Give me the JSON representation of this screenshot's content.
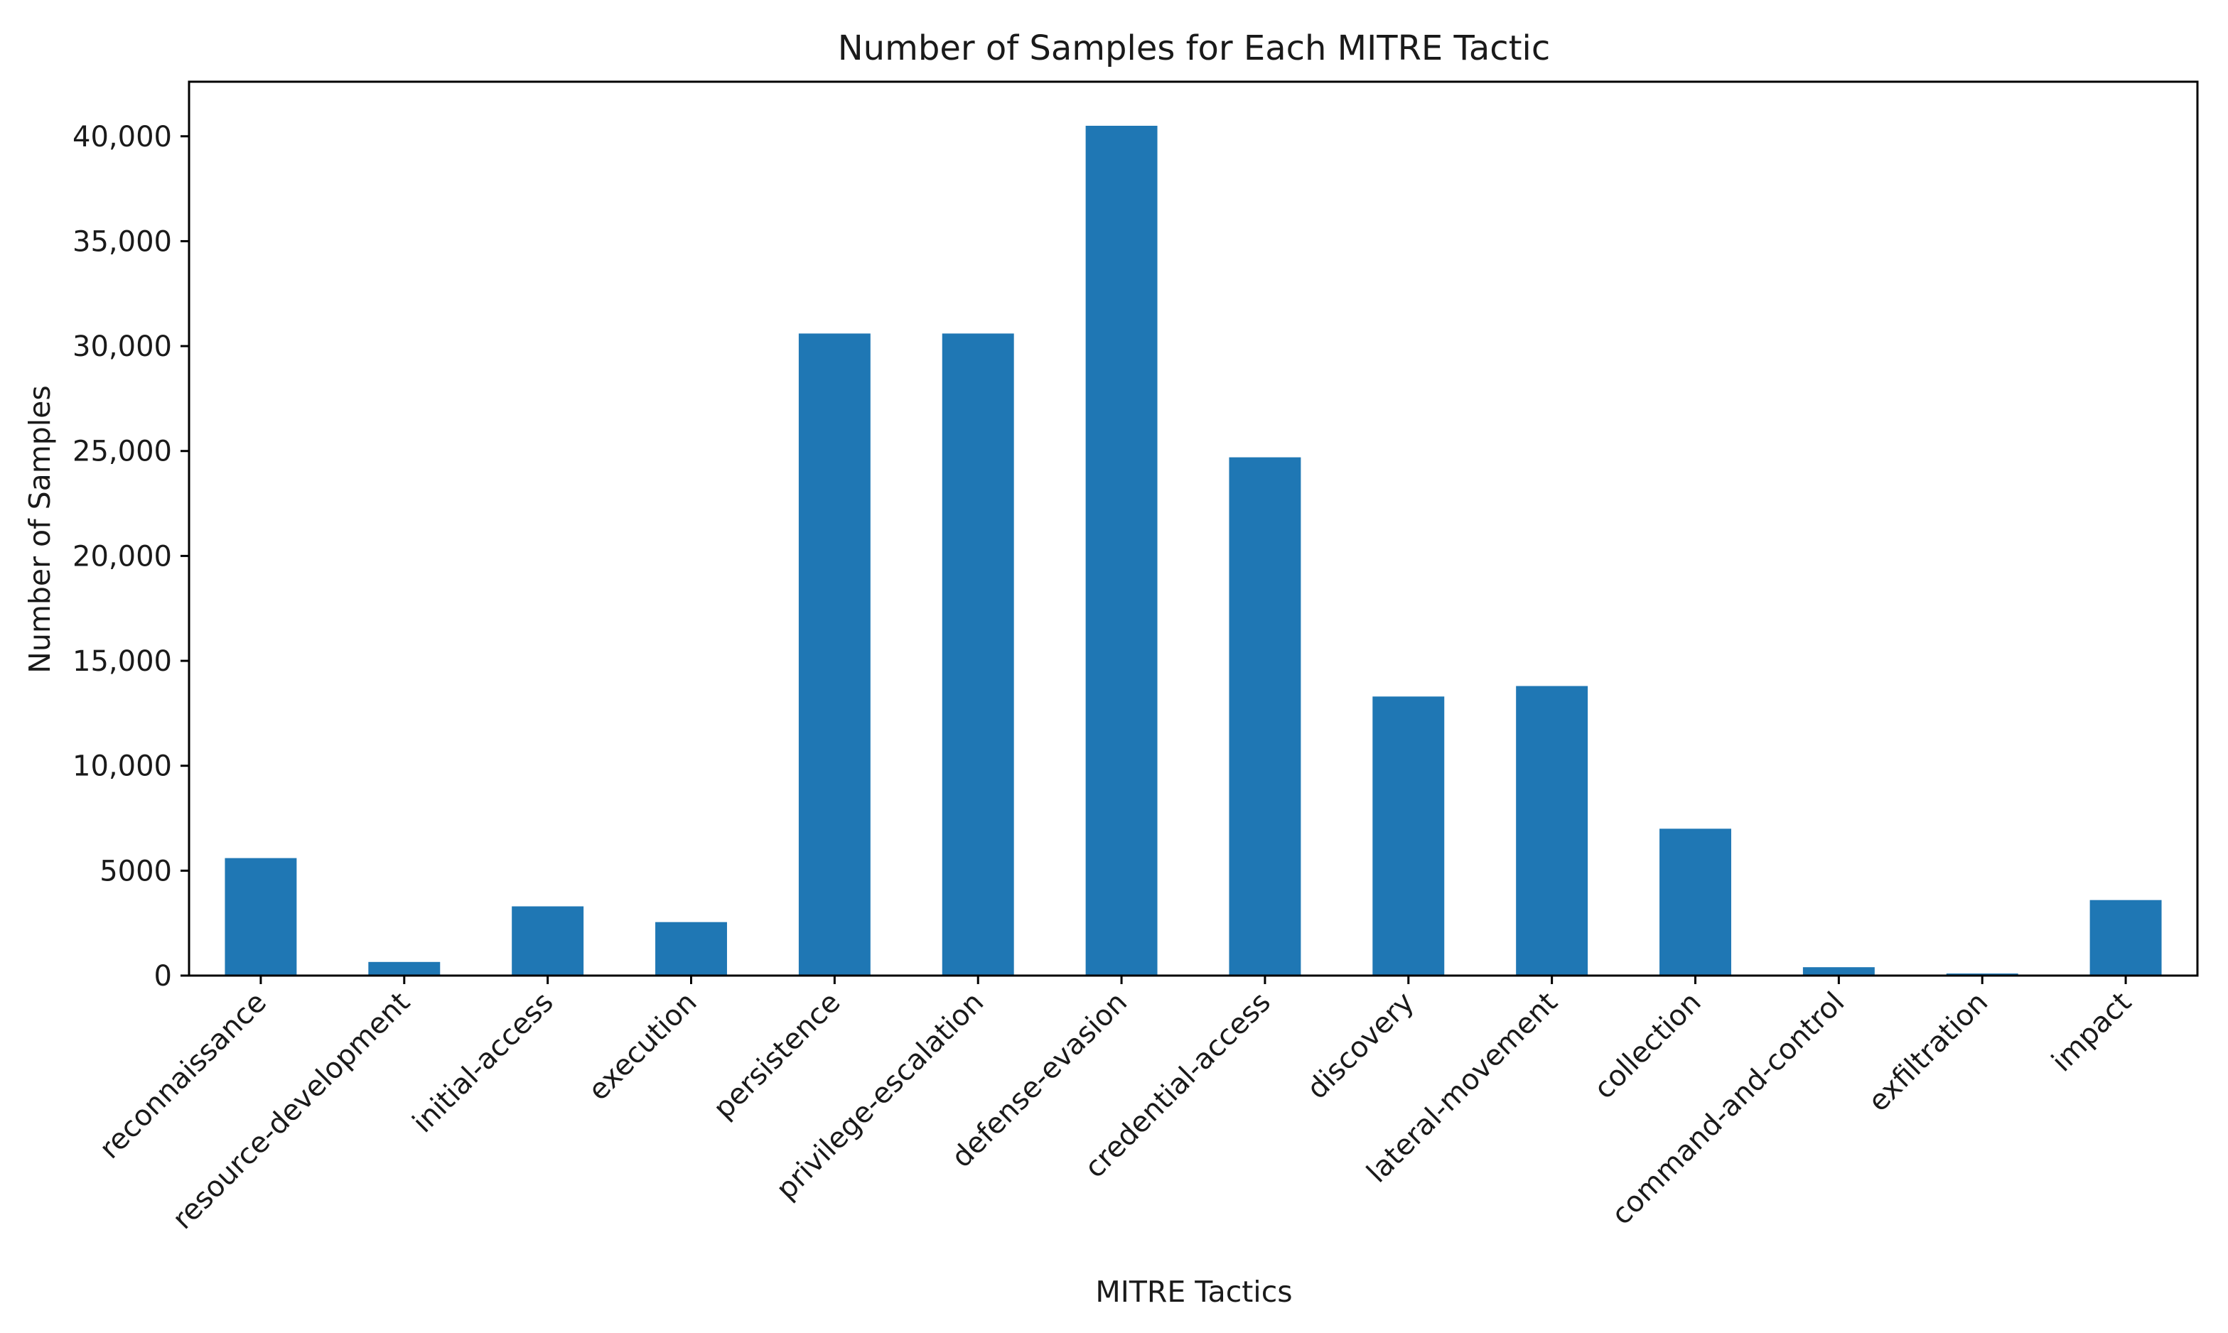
{
  "chart_data": {
    "type": "bar",
    "title": "Number of Samples for Each MITRE Tactic",
    "xlabel": "MITRE Tactics",
    "ylabel": "Number of Samples",
    "categories": [
      "reconnaissance",
      "resource-development",
      "initial-access",
      "execution",
      "persistence",
      "privilege-escalation",
      "defense-evasion",
      "credential-access",
      "discovery",
      "lateral-movement",
      "collection",
      "command-and-control",
      "exfiltration",
      "impact"
    ],
    "values": [
      5600,
      650,
      3300,
      2550,
      30600,
      30600,
      40500,
      24700,
      13300,
      13800,
      7000,
      400,
      100,
      3600
    ],
    "ylim": [
      0,
      42600
    ],
    "yticks": [
      0,
      5000,
      10000,
      15000,
      20000,
      25000,
      30000,
      35000,
      40000
    ],
    "ytick_labels": [
      "0",
      "5000",
      "10,000",
      "15,000",
      "20,000",
      "25,000",
      "30,000",
      "35,000",
      "40,000"
    ],
    "bar_color": "#1f77b4",
    "grid": false,
    "legend": "none"
  }
}
